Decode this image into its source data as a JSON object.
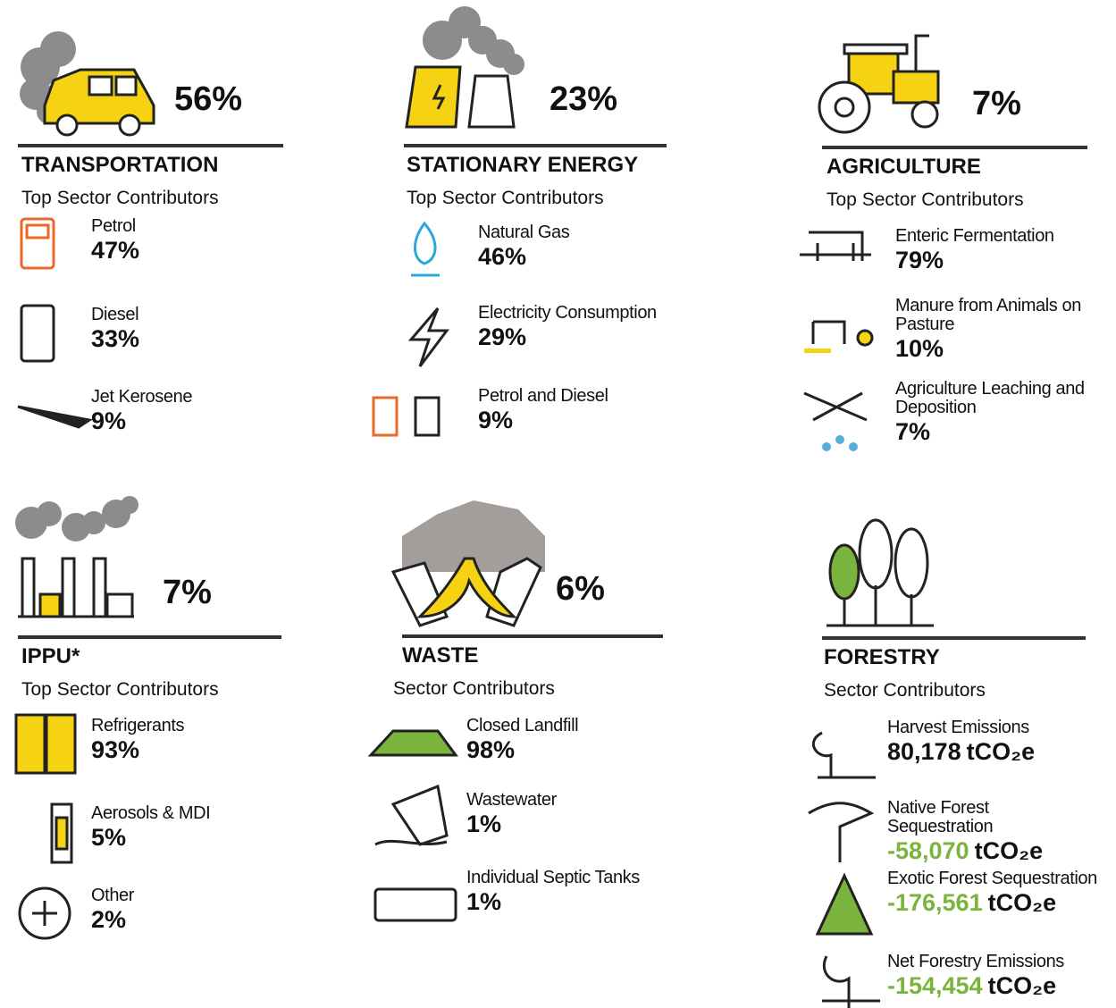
{
  "sections": [
    {
      "title": "TRANSPORTATION",
      "percent": "56%",
      "subtitle": "Top Sector Contributors",
      "items": [
        {
          "label": "Petrol",
          "value": "47%"
        },
        {
          "label": "Diesel",
          "value": "33%"
        },
        {
          "label": "Jet Kerosene",
          "value": "9%"
        }
      ]
    },
    {
      "title": "STATIONARY ENERGY",
      "percent": "23%",
      "subtitle": "Top Sector Contributors",
      "items": [
        {
          "label": "Natural Gas",
          "value": "46%"
        },
        {
          "label": "Electricity Consumption",
          "value": "29%"
        },
        {
          "label": "Petrol and Diesel",
          "value": "9%"
        }
      ]
    },
    {
      "title": "AGRICULTURE",
      "percent": "7%",
      "subtitle": "Top Sector Contributors",
      "items": [
        {
          "label": "Enteric Fermentation",
          "value": "79%"
        },
        {
          "label": "Manure from Animals on Pasture",
          "value": "10%"
        },
        {
          "label": "Agriculture Leaching and Deposition",
          "value": "7%"
        }
      ]
    },
    {
      "title": "IPPU*",
      "percent": "7%",
      "subtitle": "Top Sector Contributors",
      "items": [
        {
          "label": "Refrigerants",
          "value": "93%"
        },
        {
          "label": "Aerosols & MDI",
          "value": "5%"
        },
        {
          "label": "Other",
          "value": "2%"
        }
      ]
    },
    {
      "title": "WASTE",
      "percent": "6%",
      "subtitle": "Sector Contributors",
      "items": [
        {
          "label": "Closed Landfill",
          "value": "98%"
        },
        {
          "label": "Wastewater",
          "value": "1%"
        },
        {
          "label": "Individual Septic Tanks",
          "value": "1%"
        }
      ]
    },
    {
      "title": "FORESTRY",
      "subtitle": "Sector Contributors",
      "items": [
        {
          "label": "Harvest Emissions",
          "value": "80,178",
          "unit": "tCO₂e"
        },
        {
          "label": "Native Forest Sequestration",
          "value": "-58,070",
          "unit": "tCO₂e",
          "color": "#7ab43c"
        },
        {
          "label": "Exotic Forest Sequestration",
          "value": "-176,561",
          "unit": "tCO₂e",
          "color": "#7ab43c"
        },
        {
          "label": "Net Forestry Emissions",
          "value": "-154,454",
          "unit": "tCO₂e",
          "color": "#7ab43c"
        }
      ]
    }
  ]
}
